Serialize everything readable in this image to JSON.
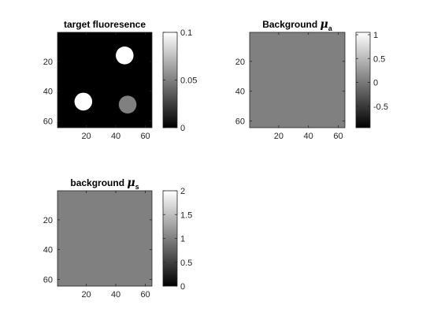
{
  "chart_data": [
    {
      "type": "heatmap",
      "title": "target fluoresence",
      "grid_size": [
        64,
        64
      ],
      "x_range": [
        0.5,
        64.5
      ],
      "y_range": [
        0.5,
        64.5
      ],
      "y_direction": "reversed",
      "xticks": [
        20,
        40,
        60
      ],
      "yticks": [
        20,
        40,
        60
      ],
      "colormap": "gray",
      "clim": [
        0,
        0.1
      ],
      "colorbar_ticks": [
        0,
        0.05,
        0.1
      ],
      "background_value": 0,
      "regions": [
        {
          "shape": "disk",
          "center_col": 46,
          "center_row": 16,
          "radius": 6,
          "value": 0.1
        },
        {
          "shape": "disk",
          "center_col": 18,
          "center_row": 47,
          "radius": 6,
          "value": 0.1
        },
        {
          "shape": "disk",
          "center_col": 48,
          "center_row": 49,
          "radius": 6,
          "value": 0.05
        }
      ]
    },
    {
      "type": "heatmap",
      "title_text": "Background ",
      "title_symbol": "μ",
      "title_subscript": "a",
      "grid_size": [
        64,
        64
      ],
      "x_range": [
        0.5,
        64.5
      ],
      "y_range": [
        0.5,
        64.5
      ],
      "y_direction": "reversed",
      "xticks": [
        20,
        40,
        60
      ],
      "yticks": [
        20,
        40,
        60
      ],
      "colormap": "gray",
      "clim": [
        -0.95,
        1.05
      ],
      "colorbar_ticks": [
        -0.5,
        0,
        0.5,
        1
      ],
      "background_value": 0.05,
      "regions": []
    },
    {
      "type": "heatmap",
      "title_text": "background ",
      "title_symbol": "μ",
      "title_subscript": "s",
      "grid_size": [
        64,
        64
      ],
      "x_range": [
        0.5,
        64.5
      ],
      "y_range": [
        0.5,
        64.5
      ],
      "y_direction": "reversed",
      "xticks": [
        20,
        40,
        60
      ],
      "yticks": [
        20,
        40,
        60
      ],
      "colormap": "gray",
      "clim": [
        0,
        2
      ],
      "colorbar_ticks": [
        0,
        0.5,
        1,
        1.5,
        2
      ],
      "background_value": 1,
      "regions": []
    }
  ]
}
